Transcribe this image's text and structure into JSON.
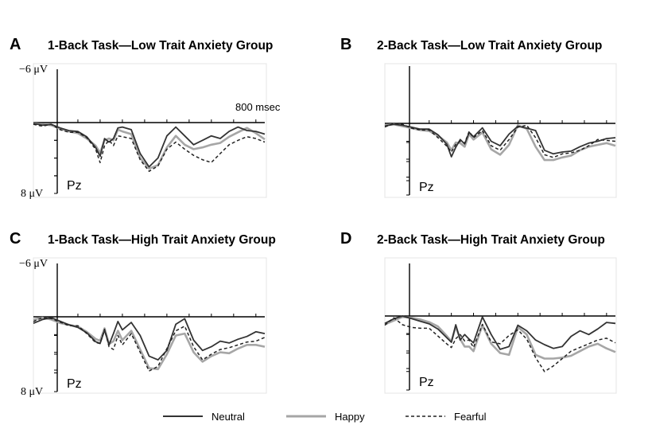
{
  "colors": {
    "neutral": "#333333",
    "happy": "#a6a6a6",
    "fearful": "#222222",
    "axis": "#000000",
    "panel_bg": "#ffffff",
    "panel_border": "#e4e4e4"
  },
  "legend": {
    "neutral": "Neutral",
    "happy": "Happy",
    "fearful": "Fearful"
  },
  "chart_data": [
    {
      "type": "line",
      "letter": "A",
      "title": "1-Back Task—Low Trait Anxiety Group",
      "electrode": "Pz",
      "y_top_label": "−6 μV",
      "y_bottom_label": "8 μV",
      "time_label": "800 msec",
      "ylim": [
        -6,
        8
      ],
      "y_inverted": true,
      "x": [
        -200,
        -160,
        -120,
        -80,
        -40,
        0,
        40,
        80,
        100,
        120,
        140,
        160,
        180,
        200,
        240,
        280,
        320,
        360,
        400,
        440,
        480,
        520,
        560,
        600,
        640,
        680,
        720,
        760,
        800,
        840
      ],
      "series": [
        {
          "name": "Neutral",
          "key": "neutral",
          "style": "solid",
          "values": [
            -0.1,
            -0.3,
            -0.2,
            -0.6,
            -0.9,
            -1.0,
            -1.6,
            -2.8,
            -3.8,
            -1.8,
            2.2,
            1.8,
            0.6,
            0.5,
            0.8,
            3.5,
            5.0,
            4.0,
            1.5,
            0.5,
            1.5,
            2.5,
            2.0,
            1.5,
            1.8,
            1.0,
            0.5,
            0.9,
            1.0,
            1.3
          ]
        },
        {
          "name": "Happy",
          "key": "happy",
          "style": "solid",
          "values": [
            0.1,
            -0.2,
            -0.3,
            -0.7,
            -1.0,
            -1.2,
            -1.8,
            -2.6,
            -3.4,
            -2.0,
            1.8,
            2.0,
            0.8,
            1.0,
            1.3,
            4.0,
            5.2,
            4.8,
            2.8,
            1.5,
            2.5,
            3.0,
            2.8,
            2.5,
            2.3,
            1.6,
            1.1,
            0.6,
            1.2,
            1.9
          ]
        },
        {
          "name": "Fearful",
          "key": "fearful",
          "style": "dashed",
          "values": [
            0.2,
            -0.4,
            -0.2,
            -0.8,
            -1.1,
            -1.1,
            -1.7,
            -3.0,
            -4.5,
            -2.6,
            2.0,
            2.6,
            1.5,
            1.6,
            1.8,
            4.2,
            5.5,
            4.9,
            3.0,
            2.2,
            3.0,
            3.7,
            4.2,
            4.5,
            3.5,
            2.5,
            2.0,
            1.6,
            1.8,
            2.2
          ]
        }
      ]
    },
    {
      "type": "line",
      "letter": "B",
      "title": "2-Back Task—Low Trait Anxiety Group",
      "electrode": "Pz",
      "y_top_label": "",
      "y_bottom_label": "",
      "time_label": "",
      "ylim": [
        -6,
        8
      ],
      "y_inverted": true,
      "x": [
        -200,
        -160,
        -120,
        -80,
        -40,
        0,
        40,
        80,
        100,
        120,
        140,
        160,
        180,
        200,
        240,
        280,
        320,
        360,
        400,
        440,
        480,
        520,
        560,
        600,
        640,
        680,
        720,
        760,
        800,
        840
      ],
      "series": [
        {
          "name": "Neutral",
          "key": "neutral",
          "style": "solid",
          "values": [
            0.3,
            0.1,
            -0.2,
            -0.4,
            -0.6,
            -0.6,
            -1.2,
            -2.2,
            -3.5,
            -2.5,
            1.8,
            2.3,
            1.0,
            1.5,
            0.5,
            2.0,
            2.5,
            1.2,
            -0.3,
            -0.5,
            0.8,
            3.0,
            3.4,
            3.2,
            3.1,
            2.6,
            2.2,
            2.0,
            1.7,
            1.6
          ]
        },
        {
          "name": "Happy",
          "key": "happy",
          "style": "solid",
          "values": [
            0.2,
            -0.1,
            -0.3,
            -0.5,
            -0.7,
            -0.8,
            -1.3,
            -2.0,
            -2.8,
            -2.0,
            2.2,
            2.6,
            1.2,
            1.8,
            1.0,
            2.9,
            3.5,
            2.4,
            0.2,
            0.6,
            2.6,
            4.1,
            4.1,
            3.8,
            3.6,
            3.0,
            2.6,
            2.4,
            2.2,
            2.5
          ]
        },
        {
          "name": "Fearful",
          "key": "fearful",
          "style": "dashed",
          "values": [
            0.4,
            0.0,
            -0.1,
            -0.5,
            -0.7,
            -0.7,
            -1.5,
            -2.4,
            -3.0,
            -2.2,
            2.0,
            2.2,
            0.9,
            1.6,
            0.8,
            2.5,
            3.0,
            1.8,
            -0.4,
            -0.2,
            1.6,
            3.5,
            3.8,
            3.4,
            3.3,
            3.0,
            2.5,
            1.8,
            1.9,
            2.0
          ]
        }
      ]
    },
    {
      "type": "line",
      "letter": "C",
      "title": "1-Back Task—High Trait Anxiety Group",
      "electrode": "Pz",
      "y_top_label": "−6 μV",
      "y_bottom_label": "8 μV",
      "time_label": "",
      "ylim": [
        -6,
        8
      ],
      "y_inverted": true,
      "x": [
        -200,
        -160,
        -120,
        -80,
        -40,
        0,
        40,
        80,
        100,
        120,
        140,
        160,
        180,
        200,
        240,
        280,
        320,
        360,
        400,
        440,
        480,
        520,
        560,
        600,
        640,
        680,
        720,
        760,
        800,
        840
      ],
      "series": [
        {
          "name": "Neutral",
          "key": "neutral",
          "style": "solid",
          "values": [
            0.7,
            0.3,
            -0.1,
            -0.5,
            -0.9,
            -1.2,
            -1.8,
            -2.8,
            -3.0,
            -1.5,
            3.0,
            1.8,
            0.5,
            1.4,
            0.6,
            2.0,
            4.2,
            4.6,
            3.6,
            0.8,
            0.2,
            2.5,
            3.6,
            3.2,
            2.6,
            2.8,
            2.4,
            2.1,
            1.6,
            1.8
          ]
        },
        {
          "name": "Happy",
          "key": "happy",
          "style": "solid",
          "values": [
            0.3,
            -0.1,
            -0.3,
            -0.7,
            -0.9,
            -1.1,
            -1.7,
            -2.5,
            -2.7,
            -1.3,
            2.9,
            2.6,
            1.5,
            2.5,
            1.5,
            3.5,
            5.5,
            5.6,
            4.0,
            2.0,
            1.8,
            3.8,
            4.8,
            4.2,
            3.8,
            3.9,
            3.4,
            3.0,
            3.0,
            3.2
          ]
        },
        {
          "name": "Fearful",
          "key": "fearful",
          "style": "dashed",
          "values": [
            0.5,
            0.1,
            -0.2,
            -0.6,
            -1.0,
            -1.0,
            -1.9,
            -2.9,
            -3.0,
            -1.4,
            3.2,
            3.5,
            2.0,
            3.0,
            1.8,
            3.8,
            5.8,
            5.3,
            3.4,
            1.5,
            1.0,
            3.2,
            4.6,
            4.0,
            3.5,
            3.3,
            3.0,
            2.7,
            2.6,
            2.2
          ]
        }
      ]
    },
    {
      "type": "line",
      "letter": "D",
      "title": "2-Back Task—High Trait Anxiety Group",
      "electrode": "Pz",
      "y_top_label": "",
      "y_bottom_label": "",
      "time_label": "",
      "ylim": [
        -6,
        8
      ],
      "y_inverted": true,
      "x": [
        -200,
        -160,
        -120,
        -80,
        -40,
        0,
        40,
        80,
        100,
        120,
        140,
        160,
        180,
        200,
        240,
        280,
        320,
        360,
        400,
        440,
        480,
        520,
        560,
        600,
        640,
        680,
        720,
        760,
        800,
        840
      ],
      "series": [
        {
          "name": "Neutral",
          "key": "neutral",
          "style": "solid",
          "values": [
            0.8,
            0.3,
            0.0,
            -0.3,
            -0.6,
            -0.9,
            -1.5,
            -2.5,
            -3.0,
            -1.0,
            2.6,
            2.0,
            2.5,
            2.9,
            0.1,
            2.0,
            3.6,
            3.3,
            1.0,
            1.6,
            2.6,
            3.1,
            3.5,
            3.3,
            2.2,
            1.6,
            2.0,
            1.4,
            0.7,
            0.8
          ]
        },
        {
          "name": "Happy",
          "key": "happy",
          "style": "solid",
          "values": [
            0.9,
            0.5,
            0.1,
            -0.2,
            -0.4,
            -0.7,
            -1.2,
            -2.3,
            -2.9,
            -1.2,
            2.5,
            3.3,
            3.3,
            3.8,
            1.0,
            3.0,
            4.0,
            4.2,
            1.2,
            2.0,
            4.2,
            4.6,
            4.6,
            4.5,
            4.3,
            3.8,
            3.3,
            3.0,
            3.5,
            3.9
          ]
        },
        {
          "name": "Fearful",
          "key": "fearful",
          "style": "dashed",
          "values": [
            1.0,
            -0.2,
            -1.0,
            -1.3,
            -1.4,
            -1.4,
            -2.3,
            -3.2,
            -3.6,
            -2.6,
            2.0,
            2.7,
            2.6,
            3.4,
            0.9,
            2.8,
            3.0,
            2.1,
            1.5,
            2.5,
            4.5,
            6.0,
            5.4,
            4.6,
            3.8,
            3.4,
            3.0,
            2.6,
            2.4,
            2.9
          ]
        }
      ]
    }
  ]
}
